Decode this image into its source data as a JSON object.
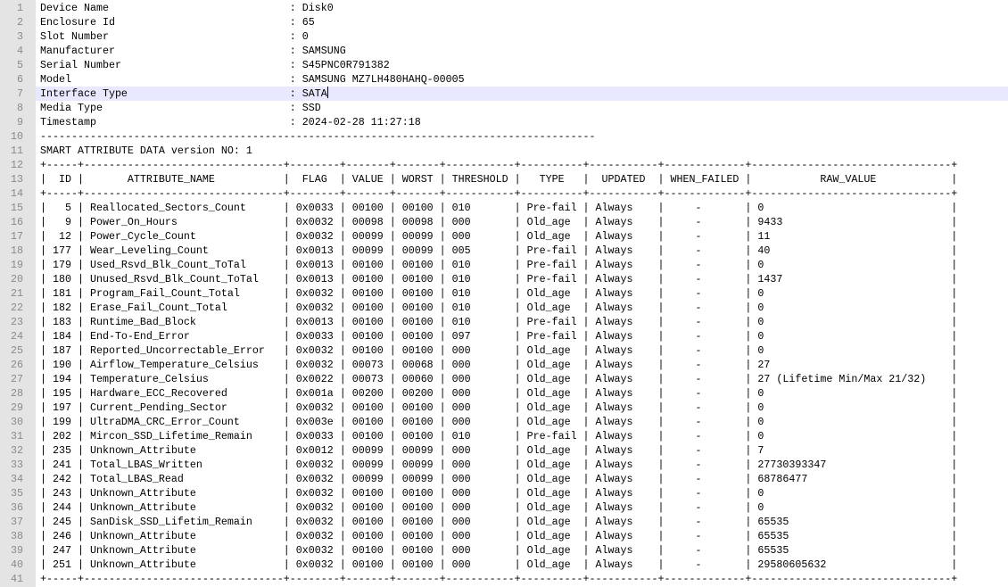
{
  "lines": [
    {
      "number": 1,
      "text": "Device Name                             : Disk0"
    },
    {
      "number": 2,
      "text": "Enclosure Id                            : 65"
    },
    {
      "number": 3,
      "text": "Slot Number                             : 0"
    },
    {
      "number": 4,
      "text": "Manufacturer                            : SAMSUNG"
    },
    {
      "number": 5,
      "text": "Serial Number                           : S45PNC0R791382"
    },
    {
      "number": 6,
      "text": "Model                                   : SAMSUNG MZ7LH480HAHQ-00005"
    },
    {
      "number": 7,
      "text": "Interface Type                          : SATA"
    },
    {
      "number": 8,
      "text": "Media Type                              : SSD"
    },
    {
      "number": 9,
      "text": "Timestamp                               : 2024-02-28 11:27:18"
    },
    {
      "number": 10,
      "text": "-----------------------------------------------------------------------------------------"
    },
    {
      "number": 11,
      "text": "SMART ATTRIBUTE DATA version NO: 1"
    },
    {
      "number": 12,
      "text": "+-----+--------------------------------+--------+-------+-------+-----------+----------+-----------+-------------+--------------------------------+"
    },
    {
      "number": 13,
      "text": "|  ID |       ATTRIBUTE_NAME           |  FLAG  | VALUE | WORST | THRESHOLD |   TYPE   |  UPDATED  | WHEN_FAILED |           RAW_VALUE            |"
    },
    {
      "number": 14,
      "text": "+-----+--------------------------------+--------+-------+-------+-----------+----------+-----------+-------------+--------------------------------+"
    },
    {
      "number": 15,
      "text": "|   5 | Reallocated_Sectors_Count      | 0x0033 | 00100 | 00100 | 010       | Pre-fail | Always    |     -       | 0                              |"
    },
    {
      "number": 16,
      "text": "|   9 | Power_On_Hours                 | 0x0032 | 00098 | 00098 | 000       | Old_age  | Always    |     -       | 9433                           |"
    },
    {
      "number": 17,
      "text": "|  12 | Power_Cycle_Count              | 0x0032 | 00099 | 00099 | 000       | Old_age  | Always    |     -       | 11                             |"
    },
    {
      "number": 18,
      "text": "| 177 | Wear_Leveling_Count            | 0x0013 | 00099 | 00099 | 005       | Pre-fail | Always    |     -       | 40                             |"
    },
    {
      "number": 19,
      "text": "| 179 | Used_Rsvd_Blk_Count_ToTal      | 0x0013 | 00100 | 00100 | 010       | Pre-fail | Always    |     -       | 0                              |"
    },
    {
      "number": 20,
      "text": "| 180 | Unused_Rsvd_Blk_Count_ToTal    | 0x0013 | 00100 | 00100 | 010       | Pre-fail | Always    |     -       | 1437                           |"
    },
    {
      "number": 21,
      "text": "| 181 | Program_Fail_Count_Total       | 0x0032 | 00100 | 00100 | 010       | Old_age  | Always    |     -       | 0                              |"
    },
    {
      "number": 22,
      "text": "| 182 | Erase_Fail_Count_Total         | 0x0032 | 00100 | 00100 | 010       | Old_age  | Always    |     -       | 0                              |"
    },
    {
      "number": 23,
      "text": "| 183 | Runtime_Bad_Block              | 0x0013 | 00100 | 00100 | 010       | Pre-fail | Always    |     -       | 0                              |"
    },
    {
      "number": 24,
      "text": "| 184 | End-To-End_Error               | 0x0033 | 00100 | 00100 | 097       | Pre-fail | Always    |     -       | 0                              |"
    },
    {
      "number": 25,
      "text": "| 187 | Reported_Uncorrectable_Error   | 0x0032 | 00100 | 00100 | 000       | Old_age  | Always    |     -       | 0                              |"
    },
    {
      "number": 26,
      "text": "| 190 | Airflow_Temperature_Celsius    | 0x0032 | 00073 | 00068 | 000       | Old_age  | Always    |     -       | 27                             |"
    },
    {
      "number": 27,
      "text": "| 194 | Temperature_Celsius            | 0x0022 | 00073 | 00060 | 000       | Old_age  | Always    |     -       | 27 (Lifetime Min/Max 21/32)    |"
    },
    {
      "number": 28,
      "text": "| 195 | Hardware_ECC_Recovered         | 0x001a | 00200 | 00200 | 000       | Old_age  | Always    |     -       | 0                              |"
    },
    {
      "number": 29,
      "text": "| 197 | Current_Pending_Sector         | 0x0032 | 00100 | 00100 | 000       | Old_age  | Always    |     -       | 0                              |"
    },
    {
      "number": 30,
      "text": "| 199 | UltraDMA_CRC_Error_Count       | 0x003e | 00100 | 00100 | 000       | Old_age  | Always    |     -       | 0                              |"
    },
    {
      "number": 31,
      "text": "| 202 | Mircon_SSD_Lifetime_Remain     | 0x0033 | 00100 | 00100 | 010       | Pre-fail | Always    |     -       | 0                              |"
    },
    {
      "number": 32,
      "text": "| 235 | Unknown_Attribute              | 0x0012 | 00099 | 00099 | 000       | Old_age  | Always    |     -       | 7                              |"
    },
    {
      "number": 33,
      "text": "| 241 | Total_LBAS_Written             | 0x0032 | 00099 | 00099 | 000       | Old_age  | Always    |     -       | 27730393347                    |"
    },
    {
      "number": 34,
      "text": "| 242 | Total_LBAS_Read                | 0x0032 | 00099 | 00099 | 000       | Old_age  | Always    |     -       | 68786477                       |"
    },
    {
      "number": 35,
      "text": "| 243 | Unknown_Attribute              | 0x0032 | 00100 | 00100 | 000       | Old_age  | Always    |     -       | 0                              |"
    },
    {
      "number": 36,
      "text": "| 244 | Unknown_Attribute              | 0x0032 | 00100 | 00100 | 000       | Old_age  | Always    |     -       | 0                              |"
    },
    {
      "number": 37,
      "text": "| 245 | SanDisk_SSD_Lifetim_Remain     | 0x0032 | 00100 | 00100 | 000       | Old_age  | Always    |     -       | 65535                          |"
    },
    {
      "number": 38,
      "text": "| 246 | Unknown_Attribute              | 0x0032 | 00100 | 00100 | 000       | Old_age  | Always    |     -       | 65535                          |"
    },
    {
      "number": 39,
      "text": "| 247 | Unknown_Attribute              | 0x0032 | 00100 | 00100 | 000       | Old_age  | Always    |     -       | 65535                          |"
    },
    {
      "number": 40,
      "text": "| 251 | Unknown_Attribute              | 0x0032 | 00100 | 00100 | 000       | Old_age  | Always    |     -       | 29580605632                    |"
    },
    {
      "number": 41,
      "text": "+-----+--------------------------------+--------+-------+-------+-----------+----------+-----------+-------------+--------------------------------+"
    }
  ]
}
